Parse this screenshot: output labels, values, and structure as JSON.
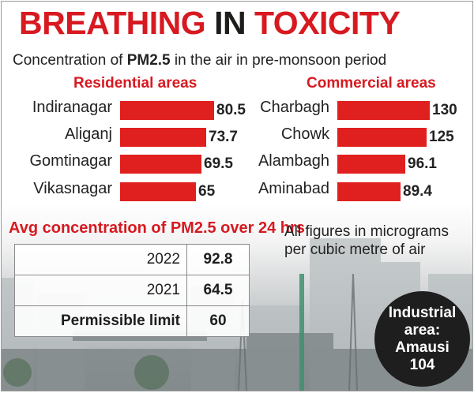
{
  "header": {
    "title_part1": "BREATHING",
    "title_part2": "IN",
    "title_part3": "TOXICITY",
    "subtitle_pre": "Concentration of ",
    "subtitle_bold": "PM2.5",
    "subtitle_post": " in the air in pre-monsoon period"
  },
  "colors": {
    "accent": "#d71920",
    "bar": "#e0201f",
    "text": "#1d1d1b",
    "circle": "#1e1e1e"
  },
  "chart_data": [
    {
      "type": "bar",
      "orientation": "horizontal",
      "title": "Residential areas",
      "categories": [
        "Indiranagar",
        "Aliganj",
        "Gomtinagar",
        "Vikasnagar"
      ],
      "values": [
        80.5,
        73.7,
        69.5,
        65
      ],
      "value_labels": [
        "80.5",
        "73.7",
        "69.5",
        "65"
      ]
    },
    {
      "type": "bar",
      "orientation": "horizontal",
      "title": "Commercial areas",
      "categories": [
        "Charbagh",
        "Chowk",
        "Alambagh",
        "Aminabad"
      ],
      "values": [
        130,
        125,
        96.1,
        89.4
      ],
      "value_labels": [
        "130",
        "125",
        "96.1",
        "89.4"
      ]
    },
    {
      "type": "table",
      "title": "Avg concentration of PM2.5 over 24 hrs",
      "rows": [
        {
          "label": "2022",
          "value": "92.8"
        },
        {
          "label": "2021",
          "value": "64.5"
        },
        {
          "label": "Permissible limit",
          "value": "60"
        }
      ]
    }
  ],
  "note": "All figures in micrograms per cubic metre of air",
  "industrial": {
    "line1": "Industrial",
    "line2": "area:",
    "line3": "Amausi",
    "line4": "104"
  }
}
